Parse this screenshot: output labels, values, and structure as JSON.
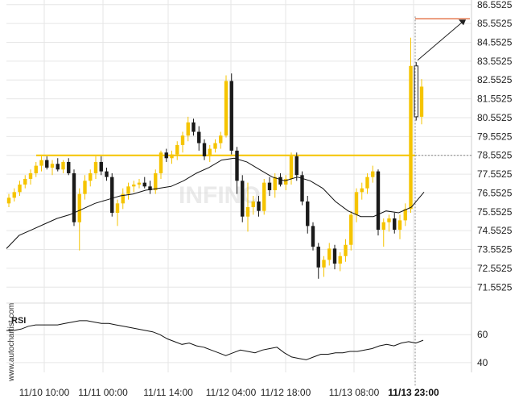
{
  "watermark": "INFINO",
  "side_text": "www.autochartist.com",
  "colors": {
    "bull": "#f5c400",
    "bear": "#1a1a1a",
    "level": "#f5c400",
    "target": "#e06030",
    "ma": "#111111",
    "rsi": "#111111",
    "grid": "#e6e6e6"
  },
  "chart_data": {
    "type": "candlestick",
    "price_axis": {
      "ylim": [
        71.05,
        86.8
      ],
      "ticks": [
        "86.5525",
        "85.5525",
        "84.5525",
        "83.5525",
        "82.5525",
        "81.5525",
        "80.5525",
        "79.5525",
        "78.5525",
        "77.5525",
        "76.5525",
        "75.5525",
        "74.5525",
        "73.5525",
        "72.5525",
        "71.5525"
      ]
    },
    "time_axis": {
      "labels": [
        "11/10 10:00",
        "11/11 00:00",
        "11/11 14:00",
        "11/12 04:00",
        "11/12 18:00",
        "11/13 08:00",
        "11/13 23:00"
      ],
      "highlight": "11/13 23:00"
    },
    "resistance_level": 78.5525,
    "projection_target": 85.8,
    "candles": [
      [
        76.0,
        76.5,
        75.8,
        76.3
      ],
      [
        76.3,
        76.8,
        76.1,
        76.6
      ],
      [
        76.6,
        77.2,
        76.4,
        77.0
      ],
      [
        77.0,
        77.5,
        76.8,
        77.3
      ],
      [
        77.3,
        77.8,
        77.0,
        77.6
      ],
      [
        77.6,
        78.2,
        77.4,
        78.0
      ],
      [
        78.0,
        78.5,
        77.7,
        78.3
      ],
      [
        78.3,
        78.5,
        77.8,
        77.9
      ],
      [
        77.9,
        78.3,
        77.5,
        78.1
      ],
      [
        78.1,
        78.4,
        77.7,
        77.8
      ],
      [
        77.8,
        78.3,
        77.6,
        78.2
      ],
      [
        78.2,
        78.4,
        77.5,
        77.6
      ],
      [
        77.6,
        77.8,
        74.8,
        75.0
      ],
      [
        75.0,
        76.8,
        73.5,
        76.5
      ],
      [
        76.5,
        77.5,
        76.2,
        77.2
      ],
      [
        77.2,
        77.8,
        76.9,
        77.6
      ],
      [
        77.6,
        78.5,
        77.3,
        78.2
      ],
      [
        78.2,
        78.5,
        77.5,
        77.7
      ],
      [
        77.7,
        77.9,
        77.2,
        77.4
      ],
      [
        77.4,
        77.6,
        75.3,
        75.5
      ],
      [
        75.5,
        76.2,
        74.8,
        76.0
      ],
      [
        76.0,
        76.8,
        75.7,
        76.5
      ],
      [
        76.5,
        77.1,
        76.2,
        76.9
      ],
      [
        76.9,
        77.2,
        76.6,
        77.0
      ],
      [
        77.0,
        77.3,
        76.8,
        77.1
      ],
      [
        77.1,
        77.4,
        76.8,
        76.9
      ],
      [
        76.9,
        77.2,
        76.5,
        76.7
      ],
      [
        76.7,
        77.8,
        76.5,
        77.6
      ],
      [
        77.6,
        78.8,
        77.3,
        78.7
      ],
      [
        78.7,
        78.9,
        78.2,
        78.4
      ],
      [
        78.4,
        78.8,
        78.1,
        78.6
      ],
      [
        78.6,
        79.3,
        78.3,
        79.1
      ],
      [
        79.1,
        79.8,
        78.7,
        79.6
      ],
      [
        79.6,
        80.6,
        79.3,
        80.3
      ],
      [
        80.3,
        80.5,
        79.6,
        79.8
      ],
      [
        79.8,
        80.1,
        78.8,
        79.2
      ],
      [
        79.2,
        79.4,
        78.3,
        78.5
      ],
      [
        78.5,
        79.1,
        78.2,
        78.9
      ],
      [
        78.9,
        79.4,
        78.7,
        79.2
      ],
      [
        79.2,
        79.8,
        78.9,
        79.6
      ],
      [
        79.6,
        82.8,
        79.5,
        82.5
      ],
      [
        82.5,
        82.9,
        78.6,
        78.8
      ],
      [
        78.8,
        79.0,
        76.5,
        77.2
      ],
      [
        77.2,
        77.5,
        75.0,
        75.3
      ],
      [
        75.3,
        77.1,
        74.5,
        75.8
      ],
      [
        75.8,
        76.4,
        75.4,
        76.1
      ],
      [
        76.1,
        76.4,
        75.3,
        75.6
      ],
      [
        75.6,
        77.3,
        75.4,
        77.1
      ],
      [
        77.1,
        77.4,
        76.4,
        76.7
      ],
      [
        76.7,
        77.6,
        76.3,
        77.4
      ],
      [
        77.4,
        77.6,
        76.9,
        77.0
      ],
      [
        77.0,
        77.5,
        76.7,
        77.3
      ],
      [
        77.3,
        78.7,
        77.0,
        78.5
      ],
      [
        78.5,
        78.7,
        77.2,
        77.5
      ],
      [
        77.5,
        77.7,
        75.9,
        76.1
      ],
      [
        76.1,
        76.4,
        74.4,
        74.8
      ],
      [
        74.8,
        75.0,
        73.5,
        73.7
      ],
      [
        73.7,
        73.9,
        72.0,
        72.6
      ],
      [
        72.6,
        73.2,
        72.1,
        73.0
      ],
      [
        73.0,
        73.9,
        72.7,
        73.6
      ],
      [
        73.6,
        73.8,
        72.5,
        72.8
      ],
      [
        72.8,
        73.4,
        72.4,
        73.2
      ],
      [
        73.2,
        74.1,
        72.9,
        73.8
      ],
      [
        73.8,
        75.6,
        73.5,
        75.4
      ],
      [
        75.4,
        76.8,
        75.0,
        76.6
      ],
      [
        76.6,
        77.1,
        76.2,
        76.8
      ],
      [
        76.8,
        77.6,
        76.5,
        77.4
      ],
      [
        77.4,
        78.0,
        77.1,
        77.7
      ],
      [
        77.7,
        77.8,
        74.3,
        74.6
      ],
      [
        74.6,
        75.2,
        73.7,
        75.0
      ],
      [
        75.0,
        75.4,
        74.5,
        75.2
      ],
      [
        75.2,
        75.5,
        74.4,
        74.6
      ],
      [
        74.6,
        75.4,
        74.1,
        75.1
      ],
      [
        75.1,
        76.0,
        74.8,
        75.7
      ],
      [
        75.7,
        84.8,
        75.5,
        83.3
      ],
      [
        83.3,
        83.5,
        80.4,
        80.6
      ],
      [
        80.6,
        82.6,
        80.2,
        82.2
      ]
    ],
    "ma_line": [
      73.6,
      74.3,
      74.6,
      74.9,
      75.2,
      75.4,
      75.7,
      76.0,
      76.2,
      76.4,
      76.5,
      76.7,
      76.8,
      76.9,
      77.2,
      77.6,
      77.9,
      78.3,
      78.4,
      78.2,
      77.8,
      77.4,
      77.2,
      77.4,
      77.2,
      76.8,
      76.1,
      75.6,
      75.3,
      75.3,
      75.6,
      75.5,
      75.8,
      76.6
    ],
    "rsi": {
      "label": "RSI",
      "ylim": [
        33,
        78
      ],
      "ticks": [
        "60",
        "40"
      ],
      "values": [
        63,
        63,
        64,
        66,
        67,
        67,
        67,
        67,
        68,
        69,
        70,
        70,
        69,
        68,
        68,
        67,
        66,
        65,
        64,
        63,
        62,
        60,
        57,
        55,
        53,
        54,
        52,
        51,
        49,
        47,
        45,
        47,
        49,
        48,
        47,
        49,
        50,
        51,
        47,
        44,
        43,
        42,
        44,
        46,
        46,
        47,
        47,
        48,
        48,
        49,
        50,
        52,
        53,
        52,
        54,
        55,
        54,
        56
      ]
    }
  }
}
